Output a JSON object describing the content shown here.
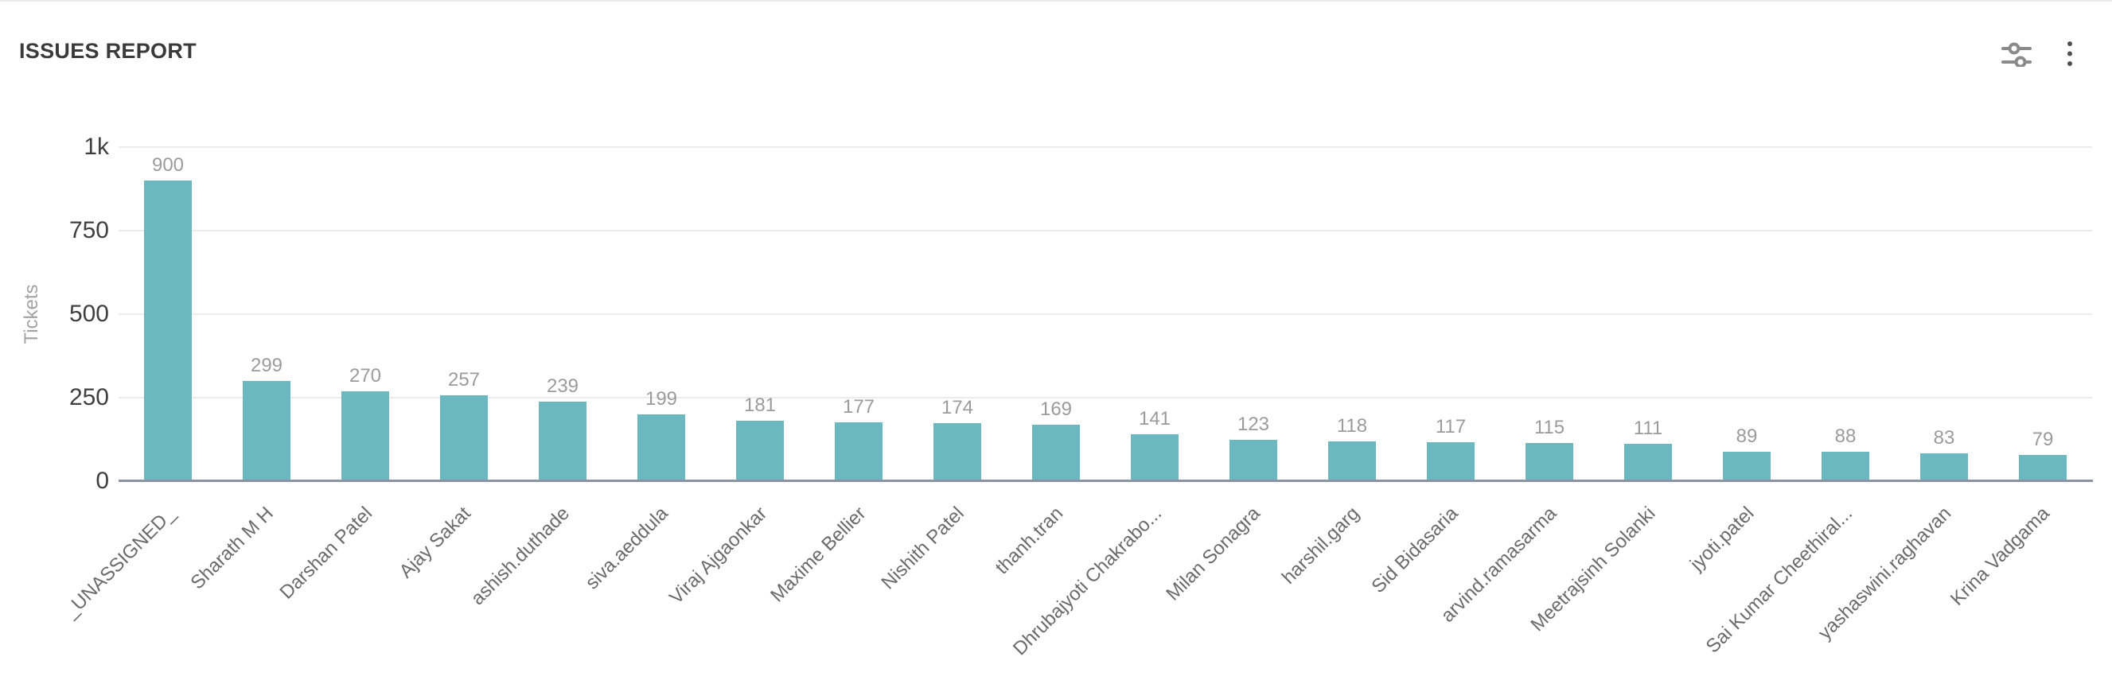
{
  "header": {
    "title": "ISSUES REPORT",
    "filters_icon": "sliders-icon",
    "menu_icon": "vertical-kebab-menu-icon"
  },
  "chart_data": {
    "type": "bar",
    "title": "ISSUES REPORT",
    "xlabel": "",
    "ylabel": "Tickets",
    "ylim": [
      0,
      1000
    ],
    "grid": "horizontal-only",
    "legend": "none",
    "bar_color": "#6cb8c1",
    "value_label_color": "#9b9b9b",
    "axis_line_color": "#8b93a2",
    "yticks": [
      {
        "label": "1k",
        "value": 1000
      },
      {
        "label": "750",
        "value": 750
      },
      {
        "label": "500",
        "value": 500
      },
      {
        "label": "250",
        "value": 250
      },
      {
        "label": "0",
        "value": 0
      }
    ],
    "categories": [
      "_UNASSIGNED_",
      "Sharath M H",
      "Darshan Patel",
      "Ajay Sakat",
      "ashish.duthade",
      "siva.aeddula",
      "Viraj Ajgaonkar",
      "Maxime Bellier",
      "Nishith Patel",
      "thanh.tran",
      "Dhrubajyoti Chakrabo...",
      "Milan Sonagra",
      "harshil.garg",
      "Sid Bidasaria",
      "arvind.ramasarma",
      "Meetrajsinh Solanki",
      "jyoti.patel",
      "Sai Kumar Cheethiral...",
      "yashaswini.raghavan",
      "Krina Vadgama"
    ],
    "values": [
      900,
      299,
      270,
      257,
      239,
      199,
      181,
      177,
      174,
      169,
      141,
      123,
      118,
      117,
      115,
      111,
      89,
      88,
      83,
      79
    ]
  }
}
